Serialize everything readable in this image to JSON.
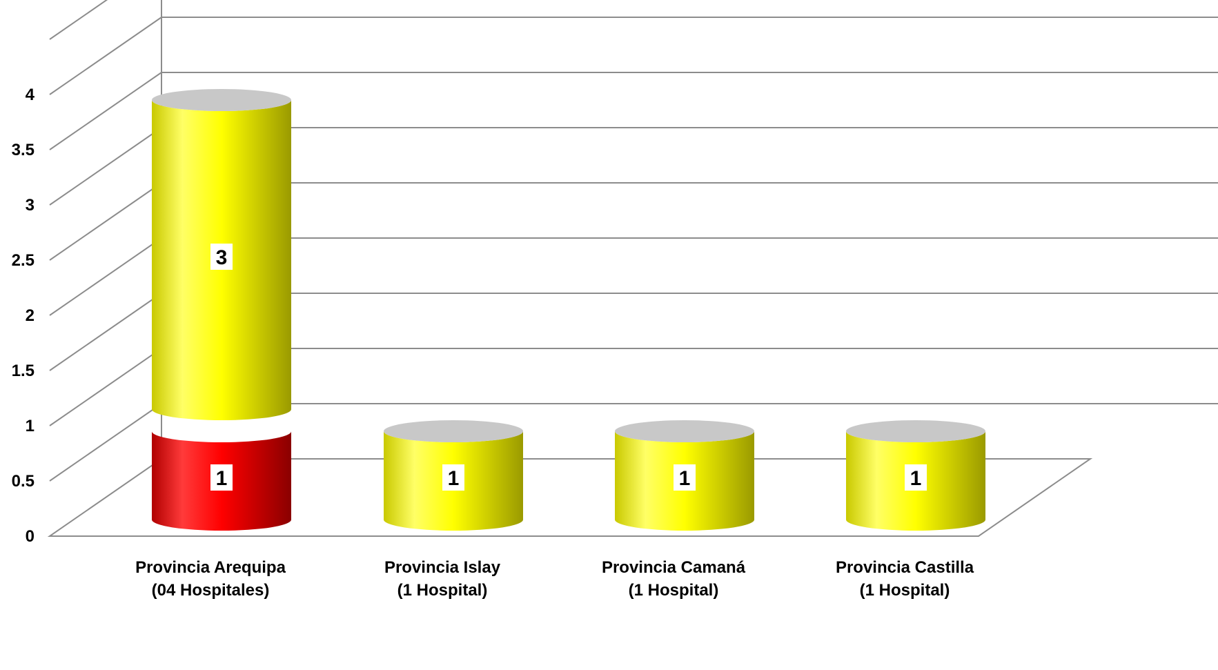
{
  "chart_data": {
    "type": "bar",
    "stacked": true,
    "three_d": true,
    "shape": "cylinder",
    "title": "",
    "xlabel": "",
    "ylabel": "",
    "ylim": [
      0,
      4.5
    ],
    "yticks": [
      "0",
      "0.5",
      "1",
      "1.5",
      "2",
      "2.5",
      "3",
      "3.5",
      "4"
    ],
    "grid": true,
    "legend": "none",
    "categories": [
      [
        "Provincia Arequipa",
        "(04 Hospitales)"
      ],
      [
        "Provincia Islay",
        "(1 Hospital)"
      ],
      [
        "Provincia Camaná",
        "(1 Hospital)"
      ],
      [
        "Provincia Castilla",
        "(1 Hospital)"
      ]
    ],
    "series": [
      {
        "values": [
          1,
          0,
          0,
          0
        ],
        "color": "#ff0000",
        "labels": [
          "1",
          "",
          "",
          ""
        ]
      },
      {
        "values": [
          3,
          1,
          1,
          1
        ],
        "color": "#ffff00",
        "labels": [
          "3",
          "1",
          "1",
          "1"
        ]
      }
    ]
  }
}
